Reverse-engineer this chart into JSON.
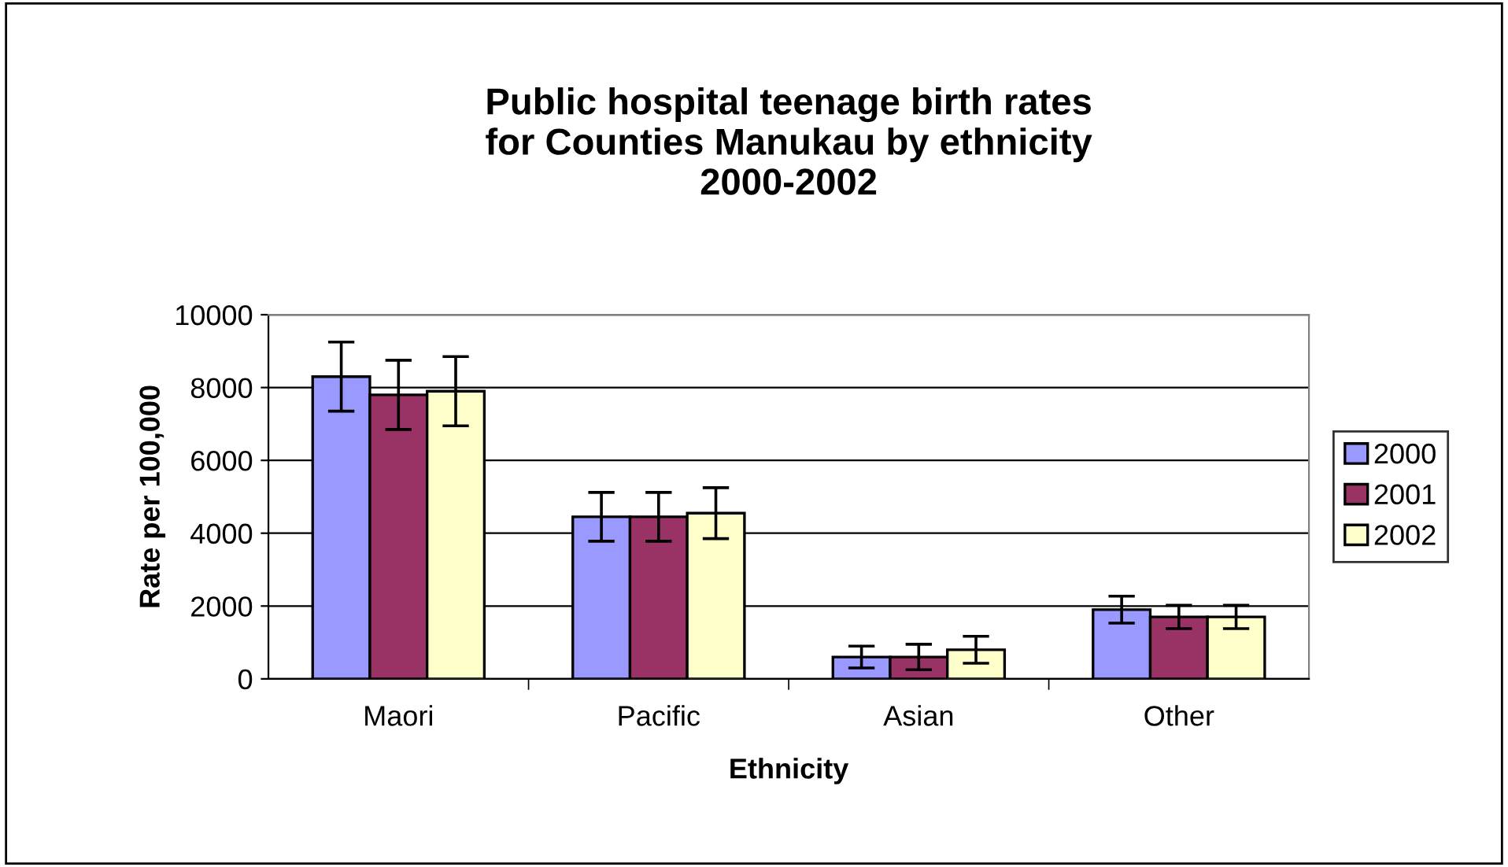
{
  "chart_data": {
    "type": "bar",
    "title": "Public hospital teenage birth rates\nfor Counties Manukau by ethnicity\n2000-2002",
    "xlabel": "Ethnicity",
    "ylabel": "Rate per 100,000",
    "categories": [
      "Maori",
      "Pacific",
      "Asian",
      "Other"
    ],
    "series": [
      {
        "name": "2000",
        "color": "#9999ff",
        "values": [
          8300,
          4450,
          600,
          1900
        ],
        "errors": [
          950,
          670,
          300,
          370
        ]
      },
      {
        "name": "2001",
        "color": "#993366",
        "values": [
          7800,
          4450,
          600,
          1700
        ],
        "errors": [
          950,
          670,
          350,
          320
        ]
      },
      {
        "name": "2002",
        "color": "#ffffcc",
        "values": [
          7900,
          4550,
          800,
          1700
        ],
        "errors": [
          950,
          700,
          370,
          320
        ]
      }
    ],
    "ylim": [
      0,
      10000
    ],
    "yticks": [
      0,
      2000,
      4000,
      6000,
      8000,
      10000
    ],
    "grid": "y",
    "legend": "right"
  }
}
